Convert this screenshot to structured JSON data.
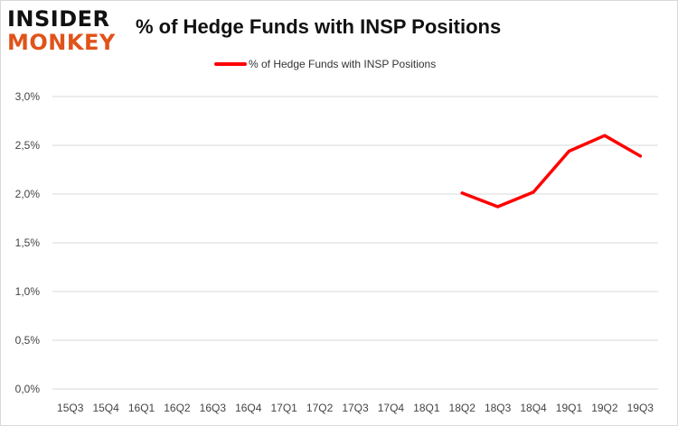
{
  "header": {
    "logo_top": "INSIDER",
    "logo_bottom": "MONKEY",
    "title": "% of Hedge Funds with INSP Positions"
  },
  "colors": {
    "series": "#ff0000",
    "grid": "#d9d9d9",
    "logo_accent": "#e0531a"
  },
  "chart_data": {
    "type": "line",
    "title": "% of Hedge Funds with INSP Positions",
    "xlabel": "",
    "ylabel": "",
    "categories": [
      "15Q3",
      "15Q4",
      "16Q1",
      "16Q2",
      "16Q3",
      "16Q4",
      "17Q1",
      "17Q2",
      "17Q3",
      "17Q4",
      "18Q1",
      "18Q2",
      "18Q3",
      "18Q4",
      "19Q1",
      "19Q2",
      "19Q3"
    ],
    "series": [
      {
        "name": "% of Hedge Funds with INSP Positions",
        "values": [
          null,
          null,
          null,
          null,
          null,
          null,
          null,
          null,
          null,
          null,
          null,
          2.01,
          1.87,
          2.02,
          2.44,
          2.6,
          2.39
        ]
      }
    ],
    "ylim": [
      0,
      3.0
    ],
    "yticks": [
      "0,0%",
      "0,5%",
      "1,0%",
      "1,5%",
      "2,0%",
      "2,5%",
      "3,0%"
    ],
    "grid": true,
    "legend": "top-center"
  }
}
